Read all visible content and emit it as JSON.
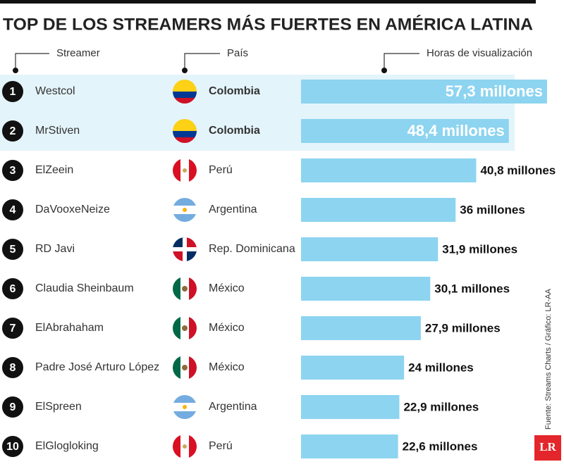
{
  "chart_data": {
    "type": "bar",
    "title": "TOP DE LOS STREAMERS MÁS FUERTES EN AMÉRICA LATINA",
    "column_headers": [
      "Streamer",
      "País",
      "Horas de visualización"
    ],
    "ranks": [
      1,
      2,
      3,
      4,
      5,
      6,
      7,
      8,
      9,
      10
    ],
    "categories": [
      "Westcol",
      "MrStiven",
      "ElZeein",
      "DaVooxeNeize",
      "RD Javi",
      "Claudia Sheinbaum",
      "ElAbrahaham",
      "Padre José Arturo López",
      "ElSpreen",
      "ElGlogloking"
    ],
    "countries": [
      "Colombia",
      "Colombia",
      "Perú",
      "Argentina",
      "Rep. Dominicana",
      "México",
      "México",
      "México",
      "Argentina",
      "Perú"
    ],
    "values": [
      57.3,
      48.4,
      40.8,
      36,
      31.9,
      30.1,
      27.9,
      24,
      22.9,
      22.6
    ],
    "value_labels": [
      "57,3 millones",
      "48,4 millones",
      "40,8 millones",
      "36 millones",
      "31,9 millones",
      "30,1 millones",
      "27,9 millones",
      "24 millones",
      "22,9 millones",
      "22,6 millones"
    ],
    "color": "#8dd4f0",
    "source": "Fuente: Streams Charts / Gráfico: LR-AA",
    "logo": "LR"
  }
}
